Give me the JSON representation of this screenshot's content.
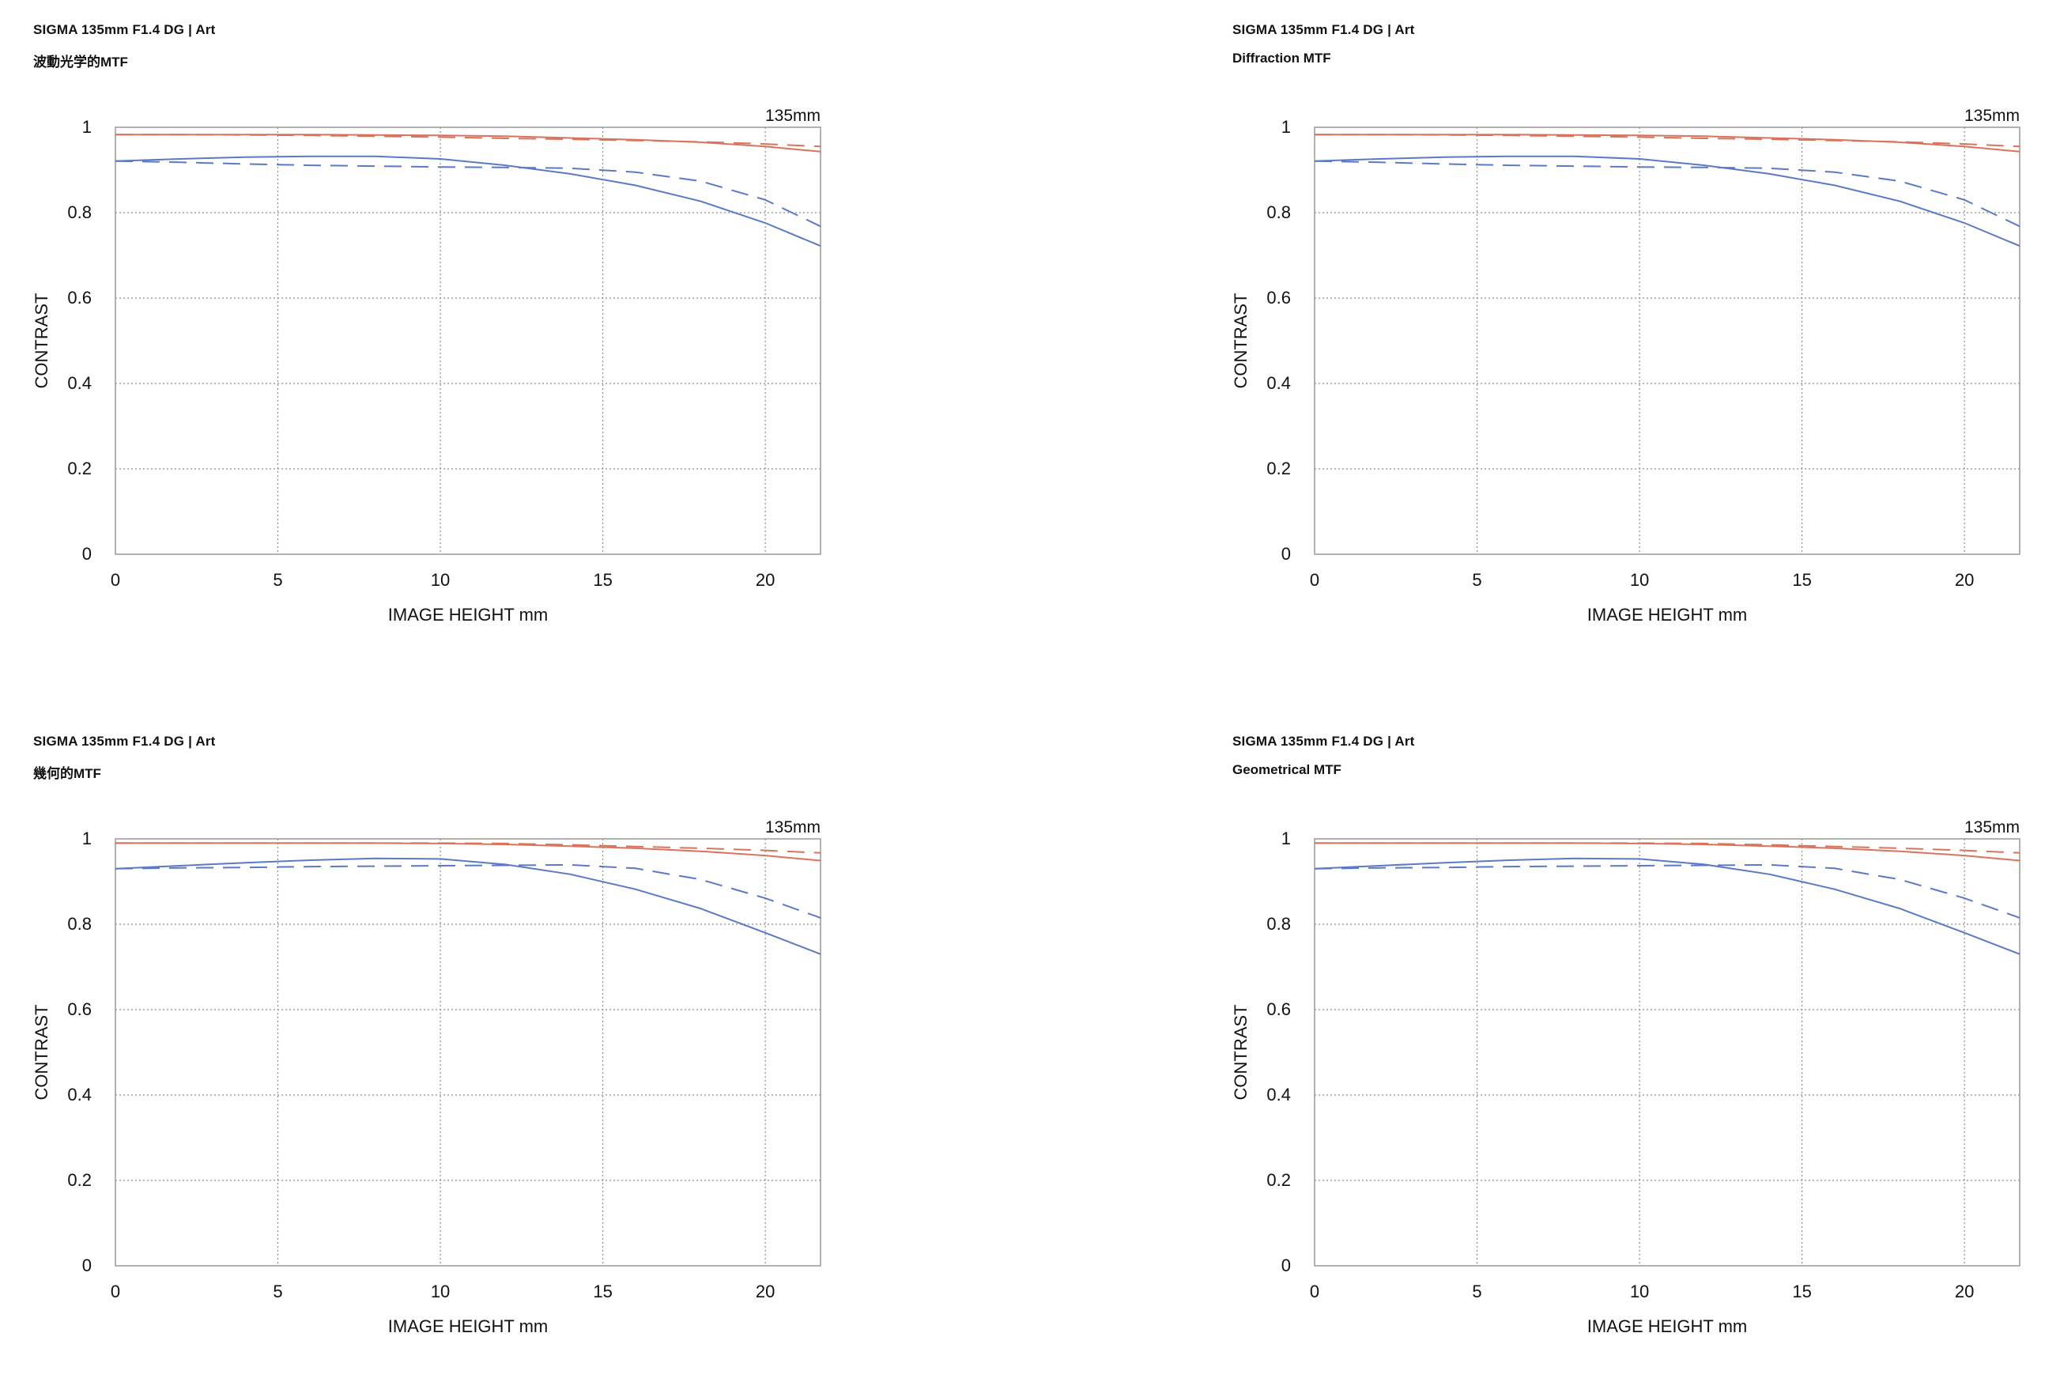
{
  "colors": {
    "sagittal": "#d9735b",
    "meridional": "#5b79c4",
    "grid": "#8c8c8c",
    "frame": "#999999"
  },
  "chart_data": [
    {
      "type": "line",
      "title": "SIGMA 135mm F1.4 DG | Art",
      "subtitle": "波動光学的MTF",
      "focal_label": "135mm",
      "xlabel": "IMAGE HEIGHT  mm",
      "ylabel": "CONTRAST",
      "xlim": [
        0,
        21.7
      ],
      "ylim": [
        0,
        1
      ],
      "xticks": [
        "0",
        "5",
        "10",
        "15",
        "20"
      ],
      "yticks": [
        "0",
        "0.2",
        "0.4",
        "0.6",
        "0.8",
        "1"
      ],
      "grid": true,
      "series": [
        {
          "name": "sagittal-solid",
          "color": "sagittal",
          "dashed": false,
          "x": [
            0,
            2,
            4,
            6,
            8,
            10,
            12,
            14,
            16,
            18,
            20,
            21.7
          ],
          "y": [
            0.983,
            0.983,
            0.983,
            0.983,
            0.982,
            0.981,
            0.979,
            0.975,
            0.971,
            0.965,
            0.955,
            0.943
          ]
        },
        {
          "name": "sagittal-dashed",
          "color": "sagittal",
          "dashed": true,
          "x": [
            0,
            2,
            4,
            6,
            8,
            10,
            12,
            14,
            16,
            18,
            20,
            21.7
          ],
          "y": [
            0.983,
            0.983,
            0.982,
            0.981,
            0.979,
            0.977,
            0.974,
            0.972,
            0.969,
            0.966,
            0.961,
            0.955
          ]
        },
        {
          "name": "meridional-solid",
          "color": "meridional",
          "dashed": false,
          "x": [
            0,
            2,
            4,
            6,
            8,
            10,
            12,
            14,
            16,
            18,
            20,
            21.7
          ],
          "y": [
            0.921,
            0.926,
            0.93,
            0.932,
            0.932,
            0.926,
            0.911,
            0.891,
            0.864,
            0.827,
            0.776,
            0.722
          ]
        },
        {
          "name": "meridional-dashed",
          "color": "meridional",
          "dashed": true,
          "x": [
            0,
            2,
            4,
            6,
            8,
            10,
            12,
            14,
            16,
            18,
            20,
            21.7
          ],
          "y": [
            0.921,
            0.918,
            0.914,
            0.911,
            0.909,
            0.907,
            0.906,
            0.904,
            0.895,
            0.874,
            0.83,
            0.768
          ]
        }
      ]
    },
    {
      "type": "line",
      "title": "SIGMA 135mm F1.4 DG | Art",
      "subtitle": "Diffraction MTF",
      "focal_label": "135mm",
      "xlabel": "IMAGE HEIGHT  mm",
      "ylabel": "CONTRAST",
      "xlim": [
        0,
        21.7
      ],
      "ylim": [
        0,
        1
      ],
      "xticks": [
        "0",
        "5",
        "10",
        "15",
        "20"
      ],
      "yticks": [
        "0",
        "0.2",
        "0.4",
        "0.6",
        "0.8",
        "1"
      ],
      "grid": true,
      "series": [
        {
          "name": "sagittal-solid",
          "color": "sagittal",
          "dashed": false,
          "x": [
            0,
            2,
            4,
            6,
            8,
            10,
            12,
            14,
            16,
            18,
            20,
            21.7
          ],
          "y": [
            0.983,
            0.983,
            0.983,
            0.983,
            0.982,
            0.981,
            0.979,
            0.975,
            0.971,
            0.965,
            0.955,
            0.943
          ]
        },
        {
          "name": "sagittal-dashed",
          "color": "sagittal",
          "dashed": true,
          "x": [
            0,
            2,
            4,
            6,
            8,
            10,
            12,
            14,
            16,
            18,
            20,
            21.7
          ],
          "y": [
            0.983,
            0.983,
            0.982,
            0.981,
            0.979,
            0.977,
            0.974,
            0.972,
            0.969,
            0.966,
            0.961,
            0.955
          ]
        },
        {
          "name": "meridional-solid",
          "color": "meridional",
          "dashed": false,
          "x": [
            0,
            2,
            4,
            6,
            8,
            10,
            12,
            14,
            16,
            18,
            20,
            21.7
          ],
          "y": [
            0.921,
            0.926,
            0.93,
            0.932,
            0.932,
            0.926,
            0.911,
            0.891,
            0.864,
            0.827,
            0.776,
            0.722
          ]
        },
        {
          "name": "meridional-dashed",
          "color": "meridional",
          "dashed": true,
          "x": [
            0,
            2,
            4,
            6,
            8,
            10,
            12,
            14,
            16,
            18,
            20,
            21.7
          ],
          "y": [
            0.921,
            0.918,
            0.914,
            0.911,
            0.909,
            0.907,
            0.906,
            0.904,
            0.895,
            0.874,
            0.83,
            0.768
          ]
        }
      ]
    },
    {
      "type": "line",
      "title": "SIGMA 135mm F1.4 DG | Art",
      "subtitle": "幾何的MTF",
      "focal_label": "135mm",
      "xlabel": "IMAGE HEIGHT  mm",
      "ylabel": "CONTRAST",
      "xlim": [
        0,
        21.7
      ],
      "ylim": [
        0,
        1
      ],
      "xticks": [
        "0",
        "5",
        "10",
        "15",
        "20"
      ],
      "yticks": [
        "0",
        "0.2",
        "0.4",
        "0.6",
        "0.8",
        "1"
      ],
      "grid": true,
      "series": [
        {
          "name": "sagittal-solid",
          "color": "sagittal",
          "dashed": false,
          "x": [
            0,
            2,
            4,
            6,
            8,
            10,
            12,
            14,
            16,
            18,
            20,
            21.7
          ],
          "y": [
            0.99,
            0.99,
            0.99,
            0.99,
            0.99,
            0.989,
            0.987,
            0.983,
            0.978,
            0.971,
            0.961,
            0.949
          ]
        },
        {
          "name": "sagittal-dashed",
          "color": "sagittal",
          "dashed": true,
          "x": [
            0,
            2,
            4,
            6,
            8,
            10,
            12,
            14,
            16,
            18,
            20,
            21.7
          ],
          "y": [
            0.99,
            0.99,
            0.99,
            0.99,
            0.99,
            0.99,
            0.989,
            0.986,
            0.982,
            0.978,
            0.973,
            0.967
          ]
        },
        {
          "name": "meridional-solid",
          "color": "meridional",
          "dashed": false,
          "x": [
            0,
            2,
            4,
            6,
            8,
            10,
            12,
            14,
            16,
            18,
            20,
            21.7
          ],
          "y": [
            0.93,
            0.937,
            0.944,
            0.95,
            0.954,
            0.953,
            0.94,
            0.917,
            0.882,
            0.837,
            0.78,
            0.73
          ]
        },
        {
          "name": "meridional-dashed",
          "color": "meridional",
          "dashed": true,
          "x": [
            0,
            2,
            4,
            6,
            8,
            10,
            12,
            14,
            16,
            18,
            20,
            21.7
          ],
          "y": [
            0.93,
            0.932,
            0.933,
            0.935,
            0.936,
            0.937,
            0.938,
            0.939,
            0.931,
            0.905,
            0.861,
            0.815
          ]
        }
      ]
    },
    {
      "type": "line",
      "title": "SIGMA 135mm F1.4 DG | Art",
      "subtitle": "Geometrical MTF",
      "focal_label": "135mm",
      "xlabel": "IMAGE HEIGHT  mm",
      "ylabel": "CONTRAST",
      "xlim": [
        0,
        21.7
      ],
      "ylim": [
        0,
        1
      ],
      "xticks": [
        "0",
        "5",
        "10",
        "15",
        "20"
      ],
      "yticks": [
        "0",
        "0.2",
        "0.4",
        "0.6",
        "0.8",
        "1"
      ],
      "grid": true,
      "series": [
        {
          "name": "sagittal-solid",
          "color": "sagittal",
          "dashed": false,
          "x": [
            0,
            2,
            4,
            6,
            8,
            10,
            12,
            14,
            16,
            18,
            20,
            21.7
          ],
          "y": [
            0.99,
            0.99,
            0.99,
            0.99,
            0.99,
            0.989,
            0.987,
            0.983,
            0.978,
            0.971,
            0.961,
            0.949
          ]
        },
        {
          "name": "sagittal-dashed",
          "color": "sagittal",
          "dashed": true,
          "x": [
            0,
            2,
            4,
            6,
            8,
            10,
            12,
            14,
            16,
            18,
            20,
            21.7
          ],
          "y": [
            0.99,
            0.99,
            0.99,
            0.99,
            0.99,
            0.99,
            0.989,
            0.986,
            0.982,
            0.978,
            0.973,
            0.967
          ]
        },
        {
          "name": "meridional-solid",
          "color": "meridional",
          "dashed": false,
          "x": [
            0,
            2,
            4,
            6,
            8,
            10,
            12,
            14,
            16,
            18,
            20,
            21.7
          ],
          "y": [
            0.93,
            0.937,
            0.944,
            0.95,
            0.954,
            0.953,
            0.94,
            0.917,
            0.882,
            0.837,
            0.78,
            0.73
          ]
        },
        {
          "name": "meridional-dashed",
          "color": "meridional",
          "dashed": true,
          "x": [
            0,
            2,
            4,
            6,
            8,
            10,
            12,
            14,
            16,
            18,
            20,
            21.7
          ],
          "y": [
            0.93,
            0.932,
            0.933,
            0.935,
            0.936,
            0.937,
            0.938,
            0.939,
            0.931,
            0.905,
            0.861,
            0.815
          ]
        }
      ]
    }
  ]
}
